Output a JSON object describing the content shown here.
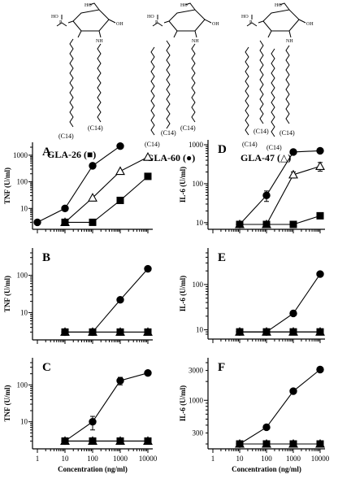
{
  "structures": [
    {
      "key": "gla26",
      "label": "GLA-26 (■)",
      "chains": [
        "(C14)",
        "(C14)"
      ]
    },
    {
      "key": "gla60",
      "label": "GLA-60 (●)",
      "chains": [
        "(C14)",
        "(C14)",
        "(C14)"
      ]
    },
    {
      "key": "gla47",
      "label": "GLA-47 (△)",
      "chains": [
        "(C14)",
        "(C14)",
        "(C14)",
        "(C14)"
      ]
    }
  ],
  "structure_atoms": {
    "ho": "HO",
    "p": "P",
    "o": "O",
    "oh": "OH",
    "nh": "NH"
  },
  "colors": {
    "ink": "#000000",
    "paper": "#ffffff"
  },
  "chart_data": [
    {
      "panel": "A",
      "type": "line",
      "xlabel": "",
      "ylabel": "TNF (U/ml)",
      "xscale": "log",
      "yscale": "log",
      "xlim": [
        1,
        10000
      ],
      "ylim": [
        2.5,
        2000
      ],
      "xticks": [
        1,
        10,
        100,
        1000,
        10000
      ],
      "xticklabels": [
        "",
        "",
        "",
        "",
        ""
      ],
      "yticks": [
        10,
        100,
        1000
      ],
      "yticklabels": [
        "10",
        "100",
        "1000"
      ],
      "series": [
        {
          "marker": "circle",
          "x": [
            1,
            10,
            100,
            1000
          ],
          "y": [
            3,
            10,
            400,
            2200
          ]
        },
        {
          "marker": "triangle",
          "x": [
            10,
            100,
            1000,
            10000
          ],
          "y": [
            3,
            25,
            250,
            850
          ]
        },
        {
          "marker": "square",
          "x": [
            10,
            100,
            1000,
            10000
          ],
          "y": [
            3,
            3,
            20,
            160
          ]
        }
      ]
    },
    {
      "panel": "B",
      "type": "line",
      "xlabel": "",
      "ylabel": "TNF (U/ml)",
      "xscale": "log",
      "yscale": "log",
      "xlim": [
        1,
        10000
      ],
      "ylim": [
        2.5,
        400
      ],
      "xticks": [
        1,
        10,
        100,
        1000,
        10000
      ],
      "xticklabels": [
        "",
        "",
        "",
        "",
        ""
      ],
      "yticks": [
        10,
        100
      ],
      "yticklabels": [
        "10",
        "100"
      ],
      "series": [
        {
          "marker": "circle",
          "x": [
            10,
            100,
            1000,
            10000
          ],
          "y": [
            3,
            3,
            22,
            150
          ]
        },
        {
          "marker": "triangle",
          "x": [
            10,
            100,
            1000,
            10000
          ],
          "y": [
            3,
            3,
            3,
            3
          ]
        },
        {
          "marker": "square",
          "x": [
            10,
            100,
            1000,
            10000
          ],
          "y": [
            3,
            3,
            3,
            3
          ]
        }
      ]
    },
    {
      "panel": "C",
      "type": "line",
      "xlabel": "Concentration (ng/ml)",
      "ylabel": "TNF (U/ml)",
      "xscale": "log",
      "yscale": "log",
      "xlim": [
        1,
        10000
      ],
      "ylim": [
        2.5,
        400
      ],
      "xticks": [
        1,
        10,
        100,
        1000,
        10000
      ],
      "xticklabels": [
        "1",
        "10",
        "100",
        "1000",
        "10000"
      ],
      "yticks": [
        10,
        100
      ],
      "yticklabels": [
        "10",
        "100"
      ],
      "series": [
        {
          "marker": "circle",
          "x": [
            10,
            100,
            1000,
            10000
          ],
          "y": [
            3,
            10,
            130,
            210
          ],
          "err": [
            0,
            4,
            30,
            0
          ]
        },
        {
          "marker": "triangle",
          "x": [
            10,
            100,
            1000,
            10000
          ],
          "y": [
            3,
            3,
            3,
            3
          ]
        },
        {
          "marker": "square",
          "x": [
            10,
            100,
            1000,
            10000
          ],
          "y": [
            3,
            3,
            3,
            3
          ]
        }
      ]
    },
    {
      "panel": "D",
      "type": "line",
      "xlabel": "",
      "ylabel": "IL-6 (U/ml)",
      "xscale": "log",
      "yscale": "log",
      "xlim": [
        1,
        10000
      ],
      "ylim": [
        9,
        1000
      ],
      "xticks": [
        1,
        10,
        100,
        1000,
        10000
      ],
      "xticklabels": [
        "",
        "",
        "",
        "",
        ""
      ],
      "yticks": [
        10,
        100,
        1000
      ],
      "yticklabels": [
        "10",
        "100",
        "1000"
      ],
      "series": [
        {
          "marker": "circle",
          "x": [
            10,
            100,
            1000,
            10000
          ],
          "y": [
            9,
            50,
            650,
            700
          ],
          "err": [
            0,
            15,
            0,
            0
          ]
        },
        {
          "marker": "triangle",
          "x": [
            10,
            100,
            1000,
            10000
          ],
          "y": [
            9,
            9,
            170,
            280
          ],
          "err": [
            0,
            0,
            30,
            70
          ]
        },
        {
          "marker": "square",
          "x": [
            10,
            100,
            1000,
            10000
          ],
          "y": [
            9,
            9,
            9,
            15
          ]
        }
      ]
    },
    {
      "panel": "E",
      "type": "line",
      "xlabel": "",
      "ylabel": "IL-6 (U/ml)",
      "xscale": "log",
      "yscale": "log",
      "xlim": [
        1,
        10000
      ],
      "ylim": [
        8,
        500
      ],
      "xticks": [
        1,
        10,
        100,
        1000,
        10000
      ],
      "xticklabels": [
        "",
        "",
        "",
        "",
        ""
      ],
      "yticks": [
        10,
        100
      ],
      "yticklabels": [
        "10",
        "100"
      ],
      "series": [
        {
          "marker": "circle",
          "x": [
            10,
            100,
            1000,
            10000
          ],
          "y": [
            9,
            9,
            23,
            170
          ]
        },
        {
          "marker": "triangle",
          "x": [
            10,
            100,
            1000,
            10000
          ],
          "y": [
            9,
            9,
            9,
            9
          ]
        },
        {
          "marker": "square",
          "x": [
            10,
            100,
            1000,
            10000
          ],
          "y": [
            9,
            9,
            9,
            9
          ]
        }
      ]
    },
    {
      "panel": "F",
      "type": "line",
      "xlabel": "Concentration (ng/ml)",
      "ylabel": "IL-6 (U/ml)",
      "xscale": "log",
      "yscale": "log",
      "xlim": [
        1,
        10000
      ],
      "ylim": [
        200,
        4000
      ],
      "xticks": [
        1,
        10,
        100,
        1000,
        10000
      ],
      "xticklabels": [
        "1",
        "10",
        "100",
        "1000",
        "10000"
      ],
      "yticks": [
        300,
        1000,
        3000
      ],
      "yticklabels": [
        "300",
        "1000",
        "3000"
      ],
      "series": [
        {
          "marker": "circle",
          "x": [
            10,
            100,
            1000,
            10000
          ],
          "y": [
            200,
            370,
            1400,
            3100
          ]
        },
        {
          "marker": "triangle",
          "x": [
            10,
            100,
            1000,
            10000
          ],
          "y": [
            200,
            200,
            200,
            200
          ]
        },
        {
          "marker": "square",
          "x": [
            10,
            100,
            1000,
            10000
          ],
          "y": [
            200,
            200,
            200,
            200
          ]
        }
      ]
    }
  ]
}
